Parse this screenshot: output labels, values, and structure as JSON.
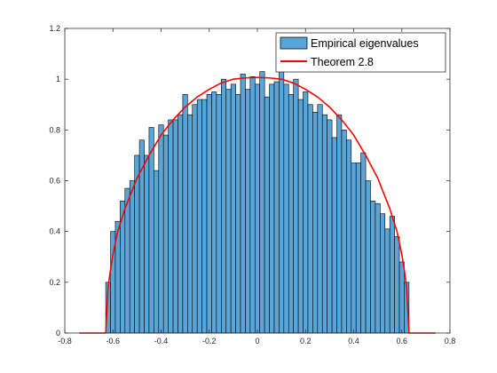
{
  "chart_data": {
    "type": "bar",
    "title": "",
    "xlabel": "",
    "ylabel": "",
    "xlim": [
      -0.8,
      0.8
    ],
    "ylim": [
      0,
      1.2
    ],
    "xticks": [
      "-0.8",
      "-0.6",
      "-0.4",
      "-0.2",
      "0",
      "0.2",
      "0.4",
      "0.6",
      "0.8"
    ],
    "yticks": [
      "0",
      "0.2",
      "0.4",
      "0.6",
      "0.8",
      "1",
      "1.2"
    ],
    "grid": false,
    "legend_position": "top-right",
    "colors": {
      "bar_fill": "#5aa5d8",
      "bar_edge": "#000000",
      "curve": "#ff0000",
      "axis": "#262626"
    },
    "series": [
      {
        "name": "Empirical eigenvalues",
        "kind": "histogram",
        "bins": [
          {
            "x0": -0.63,
            "x1": -0.61,
            "value": 0.2
          },
          {
            "x0": -0.61,
            "x1": -0.59,
            "value": 0.4
          },
          {
            "x0": -0.59,
            "x1": -0.57,
            "value": 0.44
          },
          {
            "x0": -0.57,
            "x1": -0.55,
            "value": 0.52
          },
          {
            "x0": -0.55,
            "x1": -0.53,
            "value": 0.57
          },
          {
            "x0": -0.53,
            "x1": -0.51,
            "value": 0.6
          },
          {
            "x0": -0.51,
            "x1": -0.49,
            "value": 0.7
          },
          {
            "x0": -0.49,
            "x1": -0.47,
            "value": 0.76
          },
          {
            "x0": -0.47,
            "x1": -0.45,
            "value": 0.7
          },
          {
            "x0": -0.45,
            "x1": -0.43,
            "value": 0.81
          },
          {
            "x0": -0.43,
            "x1": -0.41,
            "value": 0.64
          },
          {
            "x0": -0.41,
            "x1": -0.39,
            "value": 0.82
          },
          {
            "x0": -0.39,
            "x1": -0.37,
            "value": 0.78
          },
          {
            "x0": -0.37,
            "x1": -0.35,
            "value": 0.84
          },
          {
            "x0": -0.35,
            "x1": -0.33,
            "value": 0.84
          },
          {
            "x0": -0.33,
            "x1": -0.31,
            "value": 0.86
          },
          {
            "x0": -0.31,
            "x1": -0.29,
            "value": 0.94
          },
          {
            "x0": -0.29,
            "x1": -0.27,
            "value": 0.86
          },
          {
            "x0": -0.27,
            "x1": -0.25,
            "value": 0.9
          },
          {
            "x0": -0.25,
            "x1": -0.23,
            "value": 0.92
          },
          {
            "x0": -0.23,
            "x1": -0.21,
            "value": 0.92
          },
          {
            "x0": -0.21,
            "x1": -0.19,
            "value": 0.94
          },
          {
            "x0": -0.19,
            "x1": -0.17,
            "value": 0.95
          },
          {
            "x0": -0.17,
            "x1": -0.15,
            "value": 0.94
          },
          {
            "x0": -0.15,
            "x1": -0.13,
            "value": 1.0
          },
          {
            "x0": -0.13,
            "x1": -0.11,
            "value": 0.96
          },
          {
            "x0": -0.11,
            "x1": -0.09,
            "value": 0.98
          },
          {
            "x0": -0.09,
            "x1": -0.07,
            "value": 0.94
          },
          {
            "x0": -0.07,
            "x1": -0.05,
            "value": 1.02
          },
          {
            "x0": -0.05,
            "x1": -0.03,
            "value": 0.96
          },
          {
            "x0": -0.03,
            "x1": -0.01,
            "value": 1.01
          },
          {
            "x0": -0.01,
            "x1": 0.01,
            "value": 0.98
          },
          {
            "x0": 0.01,
            "x1": 0.03,
            "value": 1.03
          },
          {
            "x0": 0.03,
            "x1": 0.05,
            "value": 0.93
          },
          {
            "x0": 0.05,
            "x1": 0.07,
            "value": 0.98
          },
          {
            "x0": 0.07,
            "x1": 0.09,
            "value": 0.99
          },
          {
            "x0": 0.09,
            "x1": 0.11,
            "value": 1.04
          },
          {
            "x0": 0.11,
            "x1": 0.13,
            "value": 0.98
          },
          {
            "x0": 0.13,
            "x1": 0.15,
            "value": 0.94
          },
          {
            "x0": 0.15,
            "x1": 0.17,
            "value": 1.0
          },
          {
            "x0": 0.17,
            "x1": 0.19,
            "value": 0.92
          },
          {
            "x0": 0.19,
            "x1": 0.21,
            "value": 0.95
          },
          {
            "x0": 0.21,
            "x1": 0.23,
            "value": 0.9
          },
          {
            "x0": 0.23,
            "x1": 0.25,
            "value": 0.87
          },
          {
            "x0": 0.25,
            "x1": 0.27,
            "value": 0.9
          },
          {
            "x0": 0.27,
            "x1": 0.29,
            "value": 0.86
          },
          {
            "x0": 0.29,
            "x1": 0.31,
            "value": 0.84
          },
          {
            "x0": 0.31,
            "x1": 0.33,
            "value": 0.77
          },
          {
            "x0": 0.33,
            "x1": 0.35,
            "value": 0.86
          },
          {
            "x0": 0.35,
            "x1": 0.37,
            "value": 0.8
          },
          {
            "x0": 0.37,
            "x1": 0.39,
            "value": 0.76
          },
          {
            "x0": 0.39,
            "x1": 0.41,
            "value": 0.67
          },
          {
            "x0": 0.41,
            "x1": 0.43,
            "value": 0.67
          },
          {
            "x0": 0.43,
            "x1": 0.45,
            "value": 0.71
          },
          {
            "x0": 0.45,
            "x1": 0.47,
            "value": 0.6
          },
          {
            "x0": 0.47,
            "x1": 0.49,
            "value": 0.52
          },
          {
            "x0": 0.49,
            "x1": 0.51,
            "value": 0.51
          },
          {
            "x0": 0.51,
            "x1": 0.53,
            "value": 0.47
          },
          {
            "x0": 0.53,
            "x1": 0.55,
            "value": 0.41
          },
          {
            "x0": 0.55,
            "x1": 0.57,
            "value": 0.46
          },
          {
            "x0": 0.57,
            "x1": 0.59,
            "value": 0.38
          },
          {
            "x0": 0.59,
            "x1": 0.61,
            "value": 0.28
          },
          {
            "x0": 0.61,
            "x1": 0.63,
            "value": 0.2
          }
        ]
      },
      {
        "name": "Theorem 2.8",
        "kind": "line",
        "x": [
          -0.74,
          -0.63,
          -0.62,
          -0.61,
          -0.6,
          -0.58,
          -0.55,
          -0.5,
          -0.45,
          -0.4,
          -0.35,
          -0.3,
          -0.25,
          -0.2,
          -0.15,
          -0.1,
          -0.05,
          0,
          0.05,
          0.1,
          0.15,
          0.2,
          0.25,
          0.3,
          0.35,
          0.4,
          0.45,
          0.5,
          0.55,
          0.58,
          0.6,
          0.61,
          0.62,
          0.63,
          0.74
        ],
        "y": [
          0,
          0,
          0.18,
          0.25,
          0.31,
          0.4,
          0.49,
          0.61,
          0.7,
          0.78,
          0.84,
          0.89,
          0.93,
          0.96,
          0.985,
          1.0,
          1.005,
          1.007,
          1.005,
          1.0,
          0.985,
          0.96,
          0.93,
          0.89,
          0.84,
          0.78,
          0.7,
          0.61,
          0.49,
          0.4,
          0.31,
          0.25,
          0.18,
          0,
          0
        ]
      }
    ]
  }
}
